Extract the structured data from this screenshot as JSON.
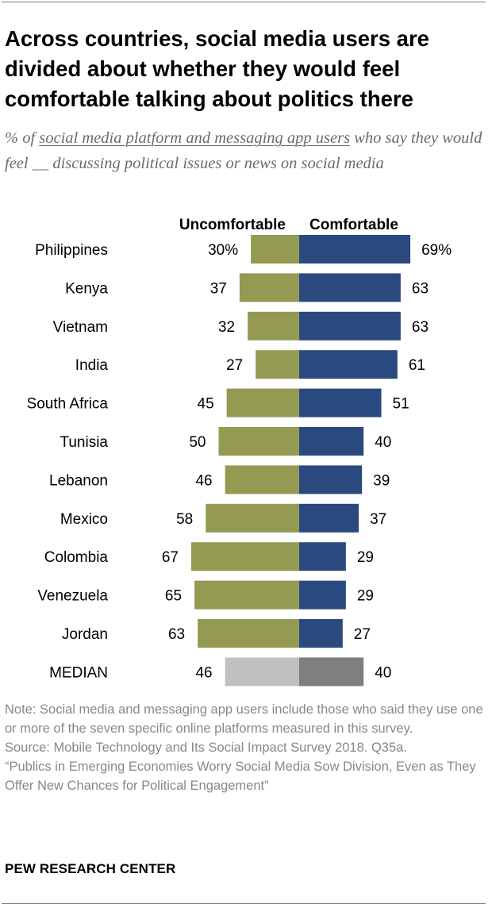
{
  "title": "Across countries, social media users are divided about whether they would feel comfortable talking about politics there",
  "subtitle": {
    "prefix": "% of ",
    "underlined": "social media platform and messaging app users",
    "suffix": " who say they would feel __ discussing political issues or news on social media"
  },
  "colors": {
    "uncomfortable": "#949a52",
    "comfortable": "#2a4a7f",
    "median_uncomfortable": "#c0c0c0",
    "median_comfortable": "#7f7f7f"
  },
  "chart_data": {
    "type": "bar",
    "orientation": "diverging-horizontal",
    "series": [
      {
        "name": "Uncomfortable",
        "values": [
          30,
          37,
          32,
          27,
          45,
          50,
          46,
          58,
          67,
          65,
          63,
          46
        ]
      },
      {
        "name": "Comfortable",
        "values": [
          69,
          63,
          63,
          61,
          51,
          40,
          39,
          37,
          29,
          29,
          27,
          40
        ]
      }
    ],
    "categories": [
      "Philippines",
      "Kenya",
      "Vietnam",
      "India",
      "South Africa",
      "Tunisia",
      "Lebanon",
      "Mexico",
      "Colombia",
      "Venezuela",
      "Jordan",
      "MEDIAN"
    ],
    "value_labels_uncomfortable": [
      "30%",
      "37",
      "32",
      "27",
      "45",
      "50",
      "46",
      "58",
      "67",
      "65",
      "63",
      "46"
    ],
    "value_labels_comfortable": [
      "69%",
      "63",
      "63",
      "61",
      "51",
      "40",
      "39",
      "37",
      "29",
      "29",
      "27",
      "40"
    ],
    "grid": false,
    "legend": "column headers above bars"
  },
  "notes": {
    "note": "Note: Social media and messaging app users include those who said they use one or more of the seven specific online platforms measured in this survey.",
    "source": "Source: Mobile Technology and Its Social Impact Survey 2018. Q35a.",
    "report": "“Publics in Emerging Economies Worry Social Media Sow Division, Even as They Offer New Chances for Political Engagement”"
  },
  "org": "PEW RESEARCH CENTER"
}
